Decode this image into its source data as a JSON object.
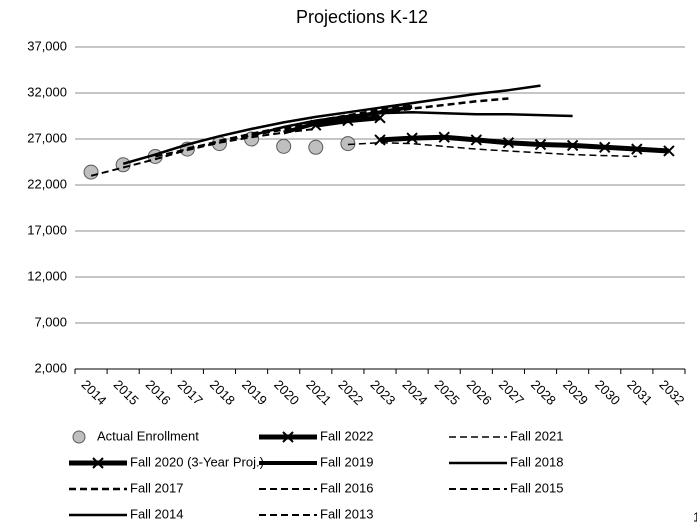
{
  "chart_data": {
    "type": "line",
    "title": "Projections K-12",
    "categories": [
      "2014",
      "2015",
      "2016",
      "2017",
      "2018",
      "2019",
      "2020",
      "2021",
      "2022",
      "2023",
      "2024",
      "2025",
      "2026",
      "2027",
      "2028",
      "2029",
      "2030",
      "2031",
      "2032"
    ],
    "ylim": [
      2000,
      37000
    ],
    "yticks": [
      {
        "value": 2000,
        "label": "2,000"
      },
      {
        "value": 7000,
        "label": "7,000"
      },
      {
        "value": 12000,
        "label": "12,000"
      },
      {
        "value": 17000,
        "label": "17,000"
      },
      {
        "value": 22000,
        "label": "22,000"
      },
      {
        "value": 27000,
        "label": "27,000"
      },
      {
        "value": 32000,
        "label": "32,000"
      },
      {
        "value": 37000,
        "label": "37,000"
      }
    ],
    "grid": true,
    "legend": "bottom",
    "page_number": "1",
    "series": [
      {
        "name": "Actual Enrollment",
        "color": "#bfbfbf",
        "marker": "circle",
        "width": 0,
        "dash": false,
        "values": [
          23400,
          24200,
          25100,
          25900,
          26500,
          27000,
          26200,
          26100,
          26500,
          null,
          null,
          null,
          null,
          null,
          null,
          null,
          null,
          null,
          null
        ]
      },
      {
        "name": "Fall 2022",
        "color": "#000000",
        "marker": "x",
        "width": 5,
        "dash": false,
        "values": [
          null,
          null,
          null,
          null,
          null,
          null,
          null,
          null,
          null,
          26900,
          27100,
          27200,
          26900,
          26600,
          26400,
          26300,
          26100,
          25900,
          25700
        ]
      },
      {
        "name": "Fall 2021",
        "color": "#000000",
        "marker": "none",
        "width": 1.5,
        "dash": true,
        "values": [
          null,
          null,
          null,
          null,
          null,
          null,
          null,
          null,
          26400,
          26600,
          26500,
          26200,
          25900,
          25700,
          25500,
          25300,
          25200,
          25100,
          null
        ]
      },
      {
        "name": "Fall 2020 (3-Year Proj.)",
        "color": "#000000",
        "marker": "x",
        "width": 5,
        "dash": false,
        "values": [
          null,
          null,
          null,
          null,
          null,
          null,
          null,
          28500,
          29000,
          29300,
          null,
          null,
          null,
          null,
          null,
          null,
          null,
          null,
          null
        ]
      },
      {
        "name": "Fall 2019",
        "color": "#000000",
        "marker": "none",
        "width": 4,
        "dash": false,
        "values": [
          null,
          null,
          null,
          null,
          null,
          null,
          27700,
          28700,
          29300,
          29900,
          30500,
          null,
          null,
          null,
          null,
          null,
          null,
          null,
          null
        ]
      },
      {
        "name": "Fall 2018",
        "color": "#000000",
        "marker": "none",
        "width": 2.5,
        "dash": false,
        "values": [
          null,
          null,
          null,
          null,
          null,
          27400,
          28300,
          29000,
          29500,
          29800,
          29900,
          29800,
          29700,
          29700,
          29600,
          29500,
          null,
          null,
          null
        ]
      },
      {
        "name": "Fall 2017",
        "color": "#000000",
        "marker": "none",
        "width": 2.5,
        "dash": true,
        "values": [
          null,
          null,
          null,
          null,
          26800,
          27400,
          28100,
          28700,
          29300,
          29800,
          30300,
          30700,
          31100,
          31400,
          null,
          null,
          null,
          null,
          null
        ]
      },
      {
        "name": "Fall 2016",
        "color": "#000000",
        "marker": "none",
        "width": 2,
        "dash": true,
        "values": [
          null,
          null,
          null,
          26000,
          26700,
          27400,
          28000,
          28600,
          29100,
          29700,
          30400,
          null,
          null,
          null,
          null,
          null,
          null,
          null,
          null
        ]
      },
      {
        "name": "Fall 2015",
        "color": "#000000",
        "marker": "none",
        "width": 2,
        "dash": true,
        "values": [
          null,
          null,
          25100,
          25900,
          26800,
          27600,
          28300,
          29000,
          29600,
          30200,
          30800,
          null,
          null,
          null,
          null,
          null,
          null,
          null,
          null
        ]
      },
      {
        "name": "Fall 2014",
        "color": "#000000",
        "marker": "none",
        "width": 2.5,
        "dash": false,
        "values": [
          null,
          24300,
          25300,
          26400,
          27300,
          28100,
          28800,
          29400,
          29900,
          30400,
          30900,
          31400,
          31900,
          32300,
          32800,
          null,
          null,
          null,
          null
        ]
      },
      {
        "name": "Fall 2013",
        "color": "#000000",
        "marker": "none",
        "width": 2,
        "dash": true,
        "values": [
          23000,
          23900,
          24800,
          25800,
          26600,
          27200,
          27700,
          28100,
          null,
          null,
          null,
          null,
          null,
          null,
          null,
          null,
          null,
          null,
          null
        ]
      }
    ]
  }
}
